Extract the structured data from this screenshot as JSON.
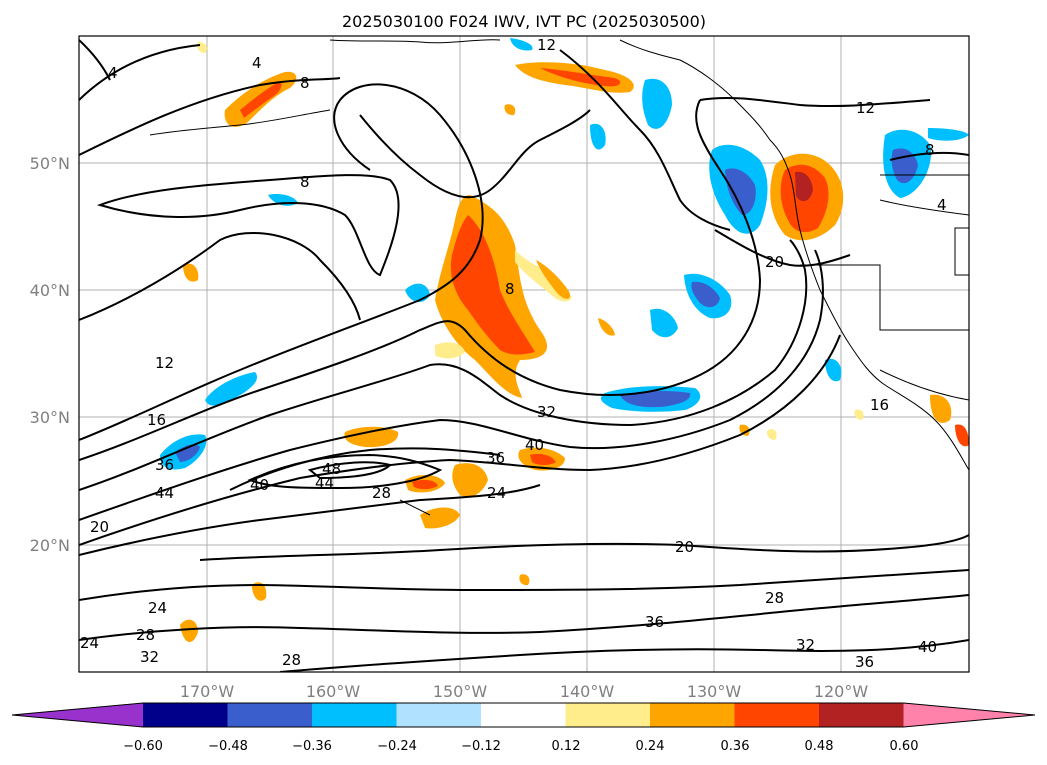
{
  "title": "2025030100 F024 IWV, IVT PC (2025030500)",
  "map": {
    "lat_ticks": [
      "50°N",
      "40°N",
      "30°N",
      "20°N"
    ],
    "lon_ticks": [
      "170°W",
      "160°W",
      "150°W",
      "140°W",
      "130°W",
      "120°W"
    ],
    "contour_labels": [
      "4",
      "4",
      "8",
      "8",
      "12",
      "12",
      "8",
      "4",
      "8",
      "20",
      "12",
      "16",
      "36",
      "44",
      "40",
      "48",
      "44",
      "28",
      "24",
      "36",
      "40",
      "32",
      "20",
      "28",
      "32",
      "36",
      "40",
      "24",
      "24",
      "28",
      "32",
      "28",
      "36",
      "16",
      "20"
    ],
    "gridlines": true
  },
  "colorbar": {
    "colors": [
      "#9932cc",
      "#00008b",
      "#3a5fcd",
      "#00bfff",
      "#b0e2ff",
      "#ffffff",
      "#ffec8b",
      "#ffa500",
      "#ff4500",
      "#b22222",
      "#ff82ab"
    ],
    "tick_labels": [
      "−0.60",
      "−0.48",
      "−0.36",
      "−0.24",
      "−0.12",
      "0.12",
      "0.24",
      "0.36",
      "0.48",
      "0.60"
    ],
    "extend": "both"
  }
}
